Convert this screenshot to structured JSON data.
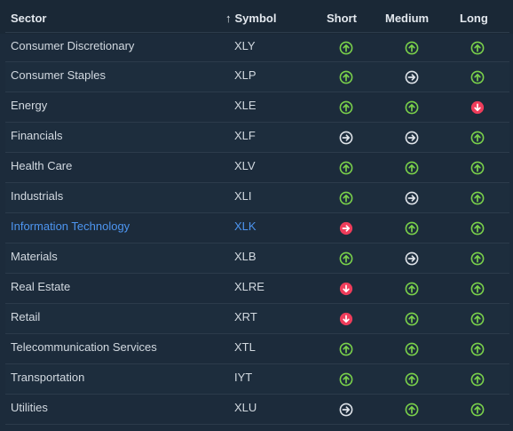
{
  "header": {
    "sector": "Sector",
    "sort_arrow": "↑",
    "symbol": "Symbol",
    "short": "Short",
    "medium": "Medium",
    "long": "Long"
  },
  "colors": {
    "up": "#7ad14b",
    "neutral": "#dfe4ea",
    "down": "#ee3d5b",
    "highlight_text": "#4d95f0"
  },
  "rows": [
    {
      "sector": "Consumer Discretionary",
      "symbol": "XLY",
      "short": "up",
      "medium": "up",
      "long": "up"
    },
    {
      "sector": "Consumer Staples",
      "symbol": "XLP",
      "short": "up",
      "medium": "neutral",
      "long": "up"
    },
    {
      "sector": "Energy",
      "symbol": "XLE",
      "short": "up",
      "medium": "up",
      "long": "down"
    },
    {
      "sector": "Financials",
      "symbol": "XLF",
      "short": "neutral",
      "medium": "neutral",
      "long": "up"
    },
    {
      "sector": "Health Care",
      "symbol": "XLV",
      "short": "up",
      "medium": "up",
      "long": "up"
    },
    {
      "sector": "Industrials",
      "symbol": "XLI",
      "short": "up",
      "medium": "neutral",
      "long": "up"
    },
    {
      "sector": "Information Technology",
      "symbol": "XLK",
      "short": "neutral-filled",
      "medium": "up",
      "long": "up",
      "active": true
    },
    {
      "sector": "Materials",
      "symbol": "XLB",
      "short": "up",
      "medium": "neutral",
      "long": "up"
    },
    {
      "sector": "Real Estate",
      "symbol": "XLRE",
      "short": "down",
      "medium": "up",
      "long": "up"
    },
    {
      "sector": "Retail",
      "symbol": "XRT",
      "short": "down",
      "medium": "up",
      "long": "up"
    },
    {
      "sector": "Telecommunication Services",
      "symbol": "XTL",
      "short": "up",
      "medium": "up",
      "long": "up"
    },
    {
      "sector": "Transportation",
      "symbol": "IYT",
      "short": "up",
      "medium": "up",
      "long": "up"
    },
    {
      "sector": "Utilities",
      "symbol": "XLU",
      "short": "neutral",
      "medium": "up",
      "long": "up"
    }
  ]
}
